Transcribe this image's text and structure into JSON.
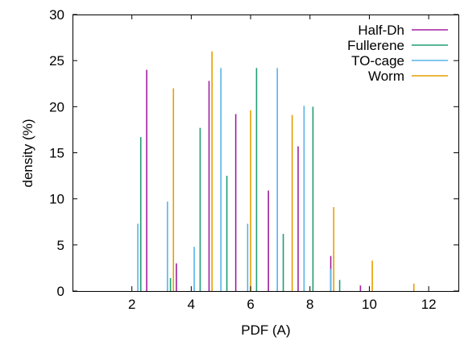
{
  "chart_data": {
    "type": "bar",
    "xlabel": "PDF (A)",
    "ylabel": "density (%)",
    "xlim": [
      0,
      13
    ],
    "ylim": [
      0,
      30
    ],
    "xticks": [
      2,
      4,
      6,
      8,
      10,
      12
    ],
    "yticks": [
      0,
      5,
      10,
      15,
      20,
      25,
      30
    ],
    "grid": false,
    "legend_position": "top-right",
    "series": [
      {
        "name": "Half-Dh",
        "color": "#a020a0",
        "x": [
          2.5,
          3.5,
          4.6,
          5.5,
          6.6,
          7.6,
          8.7,
          9.7
        ],
        "values": [
          24.0,
          3.0,
          22.8,
          19.2,
          10.9,
          15.7,
          3.8,
          0.6
        ]
      },
      {
        "name": "Fullerene",
        "color": "#1f9e74",
        "x": [
          2.3,
          3.3,
          4.3,
          5.2,
          6.2,
          7.1,
          8.1,
          9.0
        ],
        "values": [
          16.7,
          1.4,
          17.7,
          12.5,
          24.2,
          6.2,
          20.0,
          1.2
        ]
      },
      {
        "name": "TO-cage",
        "color": "#56b4e9",
        "x": [
          2.2,
          3.2,
          4.1,
          5.0,
          5.9,
          6.9,
          7.8,
          8.7
        ],
        "values": [
          7.3,
          9.7,
          4.8,
          24.2,
          7.3,
          24.2,
          20.1,
          2.4
        ]
      },
      {
        "name": "Worm",
        "color": "#e69f00",
        "x": [
          3.4,
          4.7,
          6.0,
          7.4,
          8.8,
          10.1,
          11.5
        ],
        "values": [
          22.0,
          26.0,
          19.6,
          19.1,
          9.1,
          3.3,
          0.8
        ]
      }
    ]
  }
}
